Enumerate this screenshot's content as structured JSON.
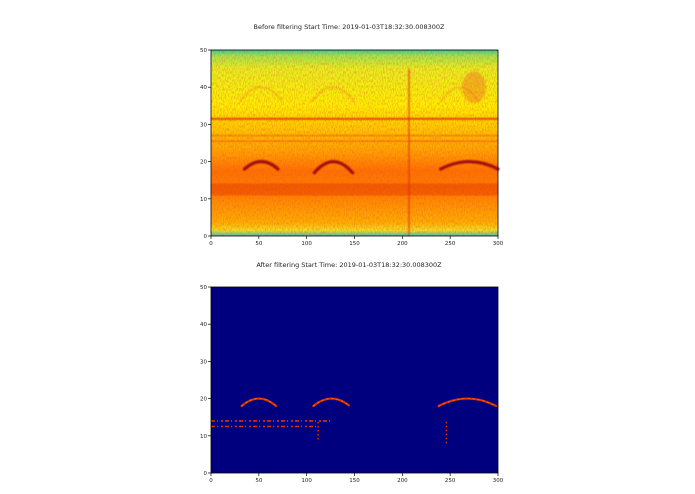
{
  "chart_data": [
    {
      "type": "heatmap",
      "title": "Before filtering Start Time: 2019-01-03T18:32:30.008300Z",
      "xlabel": "",
      "ylabel": "",
      "xlim": [
        0,
        300
      ],
      "ylim": [
        0,
        50
      ],
      "xticks": [
        0,
        50,
        100,
        150,
        200,
        250,
        300
      ],
      "yticks": [
        0,
        10,
        20,
        30,
        40,
        50
      ],
      "colormap": "jet",
      "colors": {
        "low": "#20c0b0",
        "mid": "#f0e820",
        "high": "#e04010",
        "peak": "#a00010"
      },
      "features": [
        {
          "kind": "horizontal-band",
          "y": 31.5,
          "x_range": [
            0,
            300
          ],
          "intensity": "high"
        },
        {
          "kind": "horizontal-band",
          "y": 27,
          "x_range": [
            0,
            300
          ],
          "intensity": "medium"
        },
        {
          "kind": "horizontal-band",
          "y": 25.5,
          "x_range": [
            0,
            300
          ],
          "intensity": "medium"
        },
        {
          "kind": "vertical-line",
          "x": 207,
          "y_range": [
            0,
            45
          ],
          "intensity": "high"
        },
        {
          "kind": "arc",
          "x_range": [
            35,
            70
          ],
          "y_peak": 20,
          "y_base": 18,
          "intensity": "peak"
        },
        {
          "kind": "arc",
          "x_range": [
            108,
            148
          ],
          "y_peak": 20,
          "y_base": 17,
          "intensity": "peak"
        },
        {
          "kind": "arc",
          "x_range": [
            240,
            300
          ],
          "y_peak": 20,
          "y_base": 18,
          "intensity": "peak"
        },
        {
          "kind": "region",
          "x_range": [
            0,
            300
          ],
          "y_range": [
            0,
            20
          ],
          "intensity": "high"
        },
        {
          "kind": "region",
          "x_range": [
            0,
            300
          ],
          "y_range": [
            20,
            48
          ],
          "intensity": "medium"
        },
        {
          "kind": "region",
          "x_range": [
            0,
            300
          ],
          "y_range": [
            48,
            50
          ],
          "intensity": "low"
        },
        {
          "kind": "region",
          "x_range": [
            0,
            300
          ],
          "y_range": [
            0,
            1.5
          ],
          "intensity": "low"
        }
      ]
    },
    {
      "type": "heatmap",
      "title": "After filtering Start Time: 2019-01-03T18:32:30.008300Z",
      "xlabel": "",
      "ylabel": "",
      "xlim": [
        0,
        300
      ],
      "ylim": [
        0,
        50
      ],
      "xticks": [
        0,
        50,
        100,
        150,
        200,
        250,
        300
      ],
      "yticks": [
        0,
        10,
        20,
        30,
        40,
        50
      ],
      "colormap": "jet",
      "colors": {
        "background": "#00007f",
        "signal": "#e03000",
        "signal_edge": "#ff9000"
      },
      "features": [
        {
          "kind": "arc",
          "x_range": [
            32,
            68
          ],
          "y_peak": 20,
          "y_base": 18
        },
        {
          "kind": "arc",
          "x_range": [
            107,
            145
          ],
          "y_peak": 20,
          "y_base": 18
        },
        {
          "kind": "arc",
          "x_range": [
            238,
            298
          ],
          "y_peak": 20,
          "y_base": 18
        },
        {
          "kind": "horizontal-streak",
          "y": 14,
          "x_range": [
            0,
            125
          ]
        },
        {
          "kind": "horizontal-streak",
          "y": 12.5,
          "x_range": [
            0,
            110
          ]
        },
        {
          "kind": "vertical-dots",
          "x": 246,
          "y_range": [
            8,
            14
          ]
        },
        {
          "kind": "vertical-dots",
          "x": 112,
          "y_range": [
            9,
            14
          ]
        }
      ]
    }
  ]
}
